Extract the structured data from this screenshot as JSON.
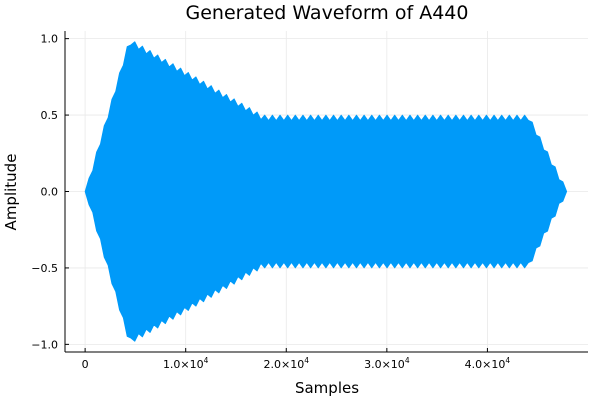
{
  "chart_data": {
    "type": "area",
    "title": "Generated Waveform of A440",
    "xlabel": "Samples",
    "ylabel": "Amplitude",
    "xlim": [
      -2000,
      50000
    ],
    "ylim": [
      -1.05,
      1.05
    ],
    "grid": true,
    "legend": "none",
    "series_color": "#009af9",
    "x_ticks": [
      {
        "value": 0,
        "mantissa": "0",
        "exponent": ""
      },
      {
        "value": 10000,
        "mantissa": "1.0×10",
        "exponent": "4"
      },
      {
        "value": 20000,
        "mantissa": "2.0×10",
        "exponent": "4"
      },
      {
        "value": 30000,
        "mantissa": "3.0×10",
        "exponent": "4"
      },
      {
        "value": 40000,
        "mantissa": "4.0×10",
        "exponent": "4"
      }
    ],
    "y_ticks": [
      {
        "value": 1.0,
        "label": "1.0"
      },
      {
        "value": 0.5,
        "label": "0.5"
      },
      {
        "value": 0.0,
        "label": "0.0"
      },
      {
        "value": -0.5,
        "label": "−0.5"
      },
      {
        "value": -1.0,
        "label": "−1.0"
      }
    ],
    "envelope": {
      "x": [
        0,
        4410,
        17640,
        44100,
        48000
      ],
      "amplitude": [
        0,
        1.0,
        0.5,
        0.5,
        0
      ]
    }
  }
}
